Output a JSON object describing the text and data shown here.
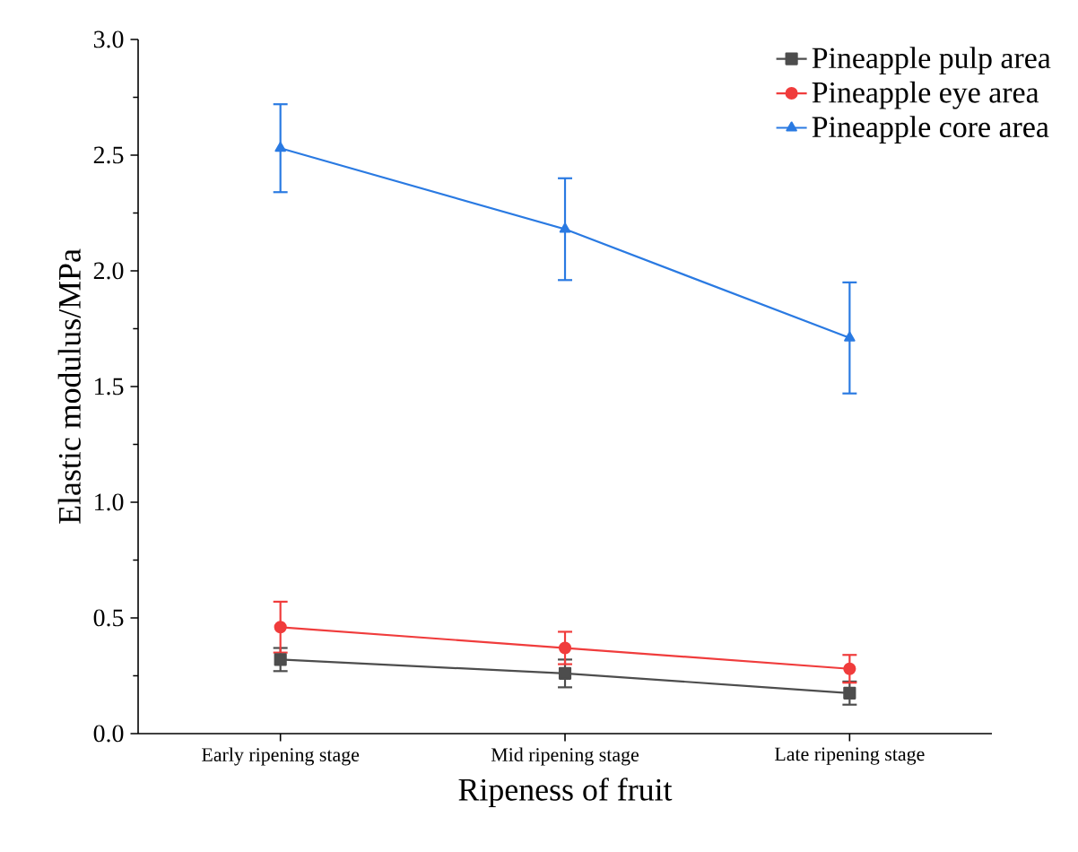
{
  "chart_data": {
    "type": "line",
    "xlabel": "Ripeness of fruit",
    "ylabel": "Elastic modulus/MPa",
    "categories": [
      "Early ripening stage",
      "Mid ripening stage",
      "Late ripening stage"
    ],
    "series": [
      {
        "name": "Pineapple pulp area",
        "color": "#4d4d4d",
        "marker": "square",
        "values": [
          0.32,
          0.26,
          0.175
        ],
        "errors": [
          0.05,
          0.06,
          0.05
        ]
      },
      {
        "name": "Pineapple eye area",
        "color": "#f03c3c",
        "marker": "circle",
        "values": [
          0.46,
          0.37,
          0.28
        ],
        "errors": [
          0.11,
          0.07,
          0.06
        ]
      },
      {
        "name": "Pineapple core area",
        "color": "#2a7ae2",
        "marker": "triangle",
        "values": [
          2.53,
          2.18,
          1.71
        ],
        "errors": [
          0.19,
          0.22,
          0.24
        ]
      }
    ],
    "ylim": [
      0,
      3
    ],
    "yticks": [
      {
        "value": 0,
        "label": "0.0"
      },
      0.5,
      {
        "value": 1,
        "label": "1.0"
      },
      1.5,
      {
        "value": 2,
        "label": "2.0"
      },
      2.5,
      {
        "value": 3,
        "label": "3.0"
      }
    ],
    "grid": false,
    "legend": "top right",
    "line_style": "solid"
  }
}
